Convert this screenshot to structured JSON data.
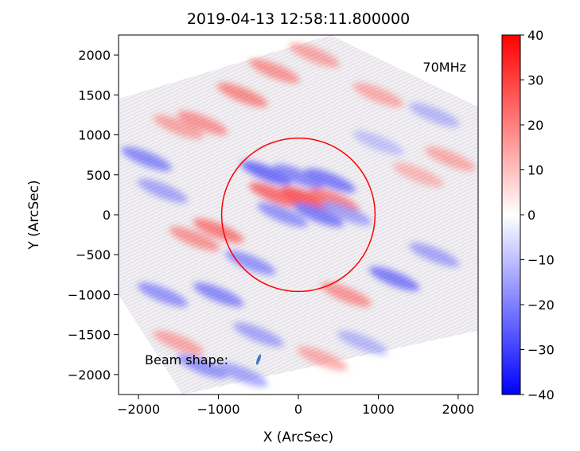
{
  "chart_data": {
    "type": "heatmap",
    "title": "2019-04-13 12:58:11.800000",
    "xlabel": "X (ArcSec)",
    "ylabel": "Y (ArcSec)",
    "xlim": [
      -2250,
      2250
    ],
    "ylim": [
      -2250,
      2250
    ],
    "xticks": [
      -2000,
      -1000,
      0,
      1000,
      2000
    ],
    "yticks": [
      -2000,
      -1500,
      -1000,
      -500,
      0,
      500,
      1000,
      1500,
      2000
    ],
    "colorbar": {
      "colormap": "bwr",
      "range": [
        -40,
        40
      ],
      "ticks": [
        -40,
        -30,
        -20,
        -10,
        0,
        10,
        20,
        30,
        40
      ],
      "colors": {
        "low": "#0000ff",
        "mid": "#ffffff",
        "high": "#ff0000"
      }
    },
    "frequency_label": "70MHz",
    "beam_label": "Beam shape:",
    "solar_disk": {
      "center": [
        0,
        0
      ],
      "radius": 960,
      "color": "#ff0000"
    },
    "rotated_image_corners": [
      [
        400,
        2250
      ],
      [
        2250,
        1350
      ],
      [
        2250,
        -1450
      ],
      [
        -1450,
        -2250
      ],
      [
        -2250,
        -1000
      ],
      [
        -2250,
        1450
      ]
    ],
    "bands": [
      {
        "x": -400,
        "y": 520,
        "value": -25
      },
      {
        "x": 0,
        "y": 480,
        "value": -20
      },
      {
        "x": 400,
        "y": 430,
        "value": -22
      },
      {
        "x": -300,
        "y": 250,
        "value": 25
      },
      {
        "x": 100,
        "y": 200,
        "value": 28
      },
      {
        "x": 450,
        "y": 180,
        "value": 22
      },
      {
        "x": -200,
        "y": 0,
        "value": -18
      },
      {
        "x": 250,
        "y": 0,
        "value": -22
      },
      {
        "x": 600,
        "y": 20,
        "value": -15
      },
      {
        "x": -1500,
        "y": 1100,
        "value": 15
      },
      {
        "x": -1200,
        "y": 1150,
        "value": 18
      },
      {
        "x": -700,
        "y": 1500,
        "value": 20
      },
      {
        "x": -300,
        "y": 1800,
        "value": 18
      },
      {
        "x": 200,
        "y": 2000,
        "value": 15
      },
      {
        "x": 1000,
        "y": 1500,
        "value": 14
      },
      {
        "x": 1700,
        "y": 1250,
        "value": -12
      },
      {
        "x": 1900,
        "y": 700,
        "value": 14
      },
      {
        "x": -1900,
        "y": 700,
        "value": -20
      },
      {
        "x": -1700,
        "y": 300,
        "value": -15
      },
      {
        "x": -1300,
        "y": -300,
        "value": 18
      },
      {
        "x": -1000,
        "y": -200,
        "value": 22
      },
      {
        "x": -1700,
        "y": -1000,
        "value": -18
      },
      {
        "x": -1000,
        "y": -1000,
        "value": -20
      },
      {
        "x": -600,
        "y": -600,
        "value": -18
      },
      {
        "x": 600,
        "y": -1000,
        "value": 18
      },
      {
        "x": 1200,
        "y": -800,
        "value": -22
      },
      {
        "x": 1700,
        "y": -500,
        "value": -15
      },
      {
        "x": -500,
        "y": -1500,
        "value": -15
      },
      {
        "x": -1500,
        "y": -1600,
        "value": 15
      },
      {
        "x": -1200,
        "y": -1900,
        "value": -18
      },
      {
        "x": -700,
        "y": -2000,
        "value": -15
      },
      {
        "x": 300,
        "y": -1800,
        "value": 14
      },
      {
        "x": 800,
        "y": -1600,
        "value": -12
      },
      {
        "x": 1000,
        "y": 900,
        "value": -10
      },
      {
        "x": 1500,
        "y": 500,
        "value": 12
      }
    ]
  }
}
